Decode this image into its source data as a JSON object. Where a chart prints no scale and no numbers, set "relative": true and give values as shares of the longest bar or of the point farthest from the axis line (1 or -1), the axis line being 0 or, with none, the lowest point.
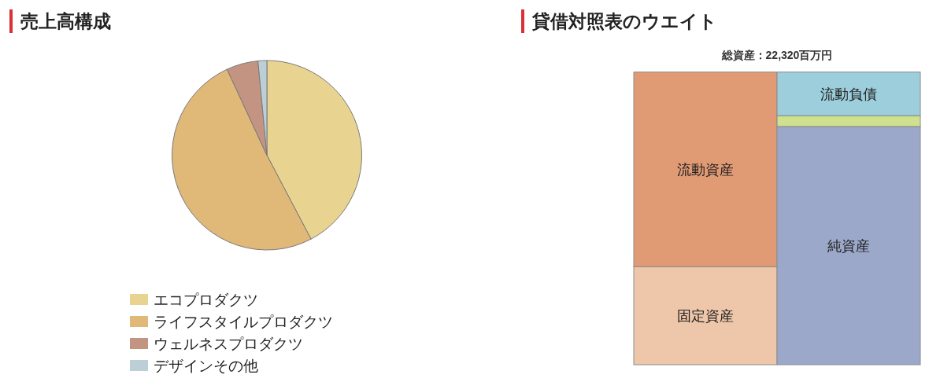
{
  "chart_data": [
    {
      "type": "pie",
      "title": "売上高構成",
      "categories": [
        "エコプロダクツ",
        "ライフスタイルプロダクツ",
        "ウェルネスプロダクツ",
        "デザインその他"
      ],
      "values": [
        42.3,
        50.8,
        5.4,
        1.5
      ],
      "colors": [
        "#e8d490",
        "#e0b878",
        "#c49483",
        "#bccfd6"
      ],
      "legend": "bottom"
    },
    {
      "type": "bar",
      "title": "貸借対照表のウエイト",
      "subtitle": "総資産：22,320百万円",
      "categories": [
        null,
        null
      ],
      "stacked": true,
      "relative": true,
      "series": [
        {
          "name": "固定資産",
          "color": "#eec6a9",
          "values": [
            0.335,
            null
          ]
        },
        {
          "name": "流動資産",
          "color": "#e09a74",
          "values": [
            0.665,
            null
          ]
        },
        {
          "name": "純資産",
          "color": "#9ba8c9",
          "values": [
            null,
            0.814
          ]
        },
        {
          "color": "#cfe08e",
          "values": [
            null,
            0.037
          ]
        },
        {
          "name": "流動負債",
          "color": "#9ccedc",
          "values": [
            null,
            0.149
          ]
        }
      ]
    }
  ]
}
